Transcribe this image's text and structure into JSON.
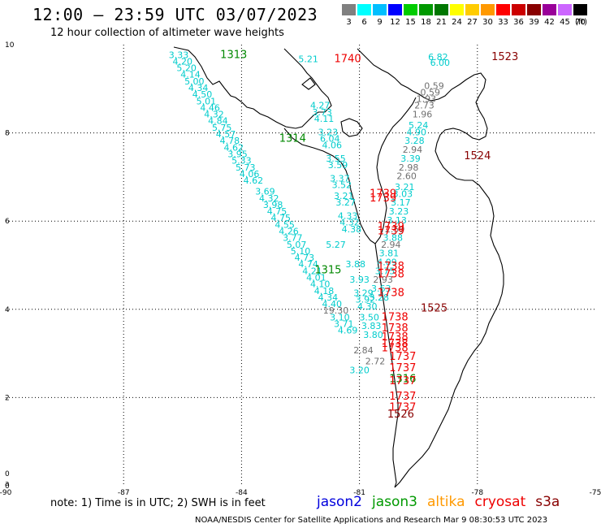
{
  "header": {
    "title": "12:00 – 23:59 UTC 03/07/2023",
    "subtitle": "12 hour collection of altimeter wave heights"
  },
  "scale": {
    "labels": [
      "3",
      "6",
      "9",
      "12",
      "15",
      "18",
      "21",
      "24",
      "27",
      "30",
      "33",
      "36",
      "39",
      "42",
      "45",
      "70"
    ],
    "colors": [
      "#808080",
      "#00ffff",
      "#00bfff",
      "#0000ff",
      "#00cc00",
      "#009900",
      "#007700",
      "#ffff00",
      "#ffcc00",
      "#ff9900",
      "#ff0000",
      "#cc0000",
      "#880000",
      "#990099",
      "#cc66ff",
      "#000000"
    ],
    "unit": "(ft)"
  },
  "map": {
    "xticks": [
      "-90",
      "-87",
      "-84",
      "-81",
      "-78",
      "-75"
    ],
    "yticks": [
      "10",
      "8",
      "6",
      "4",
      "2",
      "0"
    ],
    "extra_ylabels": [
      "0",
      "a"
    ],
    "palette": {
      "cyan": "#00cccc",
      "gray": "#707070",
      "green": "#008800",
      "red": "#ee0000",
      "darkred": "#880000"
    },
    "observations": [
      {
        "t": "3.33",
        "c": "cyan",
        "x": -85.6,
        "y": 9.7
      },
      {
        "t": "4.20",
        "c": "cyan",
        "x": -85.5,
        "y": 9.55
      },
      {
        "t": "5.20",
        "c": "cyan",
        "x": -85.4,
        "y": 9.4
      },
      {
        "t": "4.14",
        "c": "cyan",
        "x": -85.3,
        "y": 9.25
      },
      {
        "t": "5.00",
        "c": "cyan",
        "x": -85.2,
        "y": 9.1
      },
      {
        "t": "4.34",
        "c": "cyan",
        "x": -85.1,
        "y": 8.95
      },
      {
        "t": "4.50",
        "c": "cyan",
        "x": -85.0,
        "y": 8.8
      },
      {
        "t": "5.01",
        "c": "cyan",
        "x": -84.9,
        "y": 8.65
      },
      {
        "t": "4.46",
        "c": "cyan",
        "x": -84.8,
        "y": 8.5
      },
      {
        "t": "4.32",
        "c": "cyan",
        "x": -84.7,
        "y": 8.35
      },
      {
        "t": "4.84",
        "c": "cyan",
        "x": -84.6,
        "y": 8.2
      },
      {
        "t": "5.75",
        "c": "cyan",
        "x": -84.5,
        "y": 8.05
      },
      {
        "t": "4.57",
        "c": "cyan",
        "x": -84.4,
        "y": 7.9
      },
      {
        "t": "4.78",
        "c": "cyan",
        "x": -84.3,
        "y": 7.75
      },
      {
        "t": "4.62",
        "c": "cyan",
        "x": -84.2,
        "y": 7.6
      },
      {
        "t": "3.95",
        "c": "cyan",
        "x": -84.1,
        "y": 7.45
      },
      {
        "t": "5.33",
        "c": "cyan",
        "x": -84.0,
        "y": 7.3
      },
      {
        "t": "5.73",
        "c": "cyan",
        "x": -83.9,
        "y": 7.15
      },
      {
        "t": "4.06",
        "c": "cyan",
        "x": -83.8,
        "y": 7.0
      },
      {
        "t": "4.62",
        "c": "cyan",
        "x": -83.7,
        "y": 6.85
      },
      {
        "t": "3.69",
        "c": "cyan",
        "x": -83.4,
        "y": 6.6
      },
      {
        "t": "4.32",
        "c": "cyan",
        "x": -83.3,
        "y": 6.45
      },
      {
        "t": "3.98",
        "c": "cyan",
        "x": -83.2,
        "y": 6.3
      },
      {
        "t": "4.75",
        "c": "cyan",
        "x": -83.1,
        "y": 6.15
      },
      {
        "t": "4.75",
        "c": "cyan",
        "x": -83.0,
        "y": 6.0
      },
      {
        "t": "4.55",
        "c": "cyan",
        "x": -82.9,
        "y": 5.85
      },
      {
        "t": "4.26",
        "c": "cyan",
        "x": -82.8,
        "y": 5.7
      },
      {
        "t": "3.77",
        "c": "cyan",
        "x": -82.7,
        "y": 5.55
      },
      {
        "t": "5.07",
        "c": "cyan",
        "x": -82.6,
        "y": 5.4
      },
      {
        "t": "5.10",
        "c": "cyan",
        "x": -82.5,
        "y": 5.25
      },
      {
        "t": "4.73",
        "c": "cyan",
        "x": -82.4,
        "y": 5.1
      },
      {
        "t": "4.74",
        "c": "cyan",
        "x": -82.3,
        "y": 4.95
      },
      {
        "t": "4.21",
        "c": "cyan",
        "x": -82.2,
        "y": 4.8
      },
      {
        "t": "4.01",
        "c": "cyan",
        "x": -82.1,
        "y": 4.65
      },
      {
        "t": "4.10",
        "c": "cyan",
        "x": -82.0,
        "y": 4.5
      },
      {
        "t": "4.18",
        "c": "cyan",
        "x": -81.9,
        "y": 4.35
      },
      {
        "t": "4.34",
        "c": "cyan",
        "x": -81.8,
        "y": 4.2
      },
      {
        "t": "4.40",
        "c": "cyan",
        "x": -81.7,
        "y": 4.05
      },
      {
        "t": "19.30",
        "c": "gray",
        "x": -81.6,
        "y": 3.9
      },
      {
        "t": "3.10",
        "c": "cyan",
        "x": -81.5,
        "y": 3.75
      },
      {
        "t": "3.71",
        "c": "cyan",
        "x": -81.4,
        "y": 3.6
      },
      {
        "t": "4.69",
        "c": "cyan",
        "x": -81.3,
        "y": 3.45
      },
      {
        "t": "5.21",
        "c": "cyan",
        "x": -82.3,
        "y": 9.6
      },
      {
        "t": "4.27",
        "c": "cyan",
        "x": -82.0,
        "y": 8.55
      },
      {
        "t": "3.73",
        "c": "cyan",
        "x": -81.95,
        "y": 8.4
      },
      {
        "t": "4.11",
        "c": "cyan",
        "x": -81.9,
        "y": 8.25
      },
      {
        "t": "3.23",
        "c": "cyan",
        "x": -81.8,
        "y": 7.95
      },
      {
        "t": "6.04",
        "c": "cyan",
        "x": -81.75,
        "y": 7.8
      },
      {
        "t": "4.06",
        "c": "cyan",
        "x": -81.7,
        "y": 7.65
      },
      {
        "t": "3.55",
        "c": "cyan",
        "x": -81.6,
        "y": 7.35
      },
      {
        "t": "3.59",
        "c": "cyan",
        "x": -81.55,
        "y": 7.2
      },
      {
        "t": "3.37",
        "c": "cyan",
        "x": -81.5,
        "y": 6.9
      },
      {
        "t": "3.52",
        "c": "cyan",
        "x": -81.45,
        "y": 6.75
      },
      {
        "t": "3.21",
        "c": "cyan",
        "x": -81.4,
        "y": 6.5
      },
      {
        "t": "3.27",
        "c": "cyan",
        "x": -81.35,
        "y": 6.35
      },
      {
        "t": "4.33",
        "c": "cyan",
        "x": -81.3,
        "y": 6.05
      },
      {
        "t": "4.32",
        "c": "cyan",
        "x": -81.25,
        "y": 5.9
      },
      {
        "t": "4.38",
        "c": "cyan",
        "x": -81.2,
        "y": 5.75
      },
      {
        "t": "5.27",
        "c": "cyan",
        "x": -81.6,
        "y": 5.4
      },
      {
        "t": "3.88",
        "c": "cyan",
        "x": -81.1,
        "y": 4.95
      },
      {
        "t": "3.93",
        "c": "cyan",
        "x": -81.0,
        "y": 4.6
      },
      {
        "t": "3.29",
        "c": "cyan",
        "x": -80.9,
        "y": 4.3
      },
      {
        "t": "3.92",
        "c": "cyan",
        "x": -80.85,
        "y": 4.15
      },
      {
        "t": "4.30",
        "c": "cyan",
        "x": -80.8,
        "y": 4.0
      },
      {
        "t": "3.50",
        "c": "cyan",
        "x": -80.75,
        "y": 3.75
      },
      {
        "t": "3.83",
        "c": "cyan",
        "x": -80.7,
        "y": 3.55
      },
      {
        "t": "3.80",
        "c": "cyan",
        "x": -80.65,
        "y": 3.35
      },
      {
        "t": "6.82",
        "c": "cyan",
        "x": -79.0,
        "y": 9.65
      },
      {
        "t": "6.00",
        "c": "cyan",
        "x": -78.95,
        "y": 9.52
      },
      {
        "t": "0.59",
        "c": "gray",
        "x": -79.1,
        "y": 9.0
      },
      {
        "t": "0.59",
        "c": "gray",
        "x": -79.2,
        "y": 8.85
      },
      {
        "t": "1.93",
        "c": "gray",
        "x": -79.3,
        "y": 8.7
      },
      {
        "t": "2.73",
        "c": "gray",
        "x": -79.35,
        "y": 8.55
      },
      {
        "t": "1.96",
        "c": "gray",
        "x": -79.4,
        "y": 8.35
      },
      {
        "t": "5.24",
        "c": "cyan",
        "x": -79.5,
        "y": 8.1
      },
      {
        "t": "4.90",
        "c": "cyan",
        "x": -79.55,
        "y": 7.95
      },
      {
        "t": "3.28",
        "c": "cyan",
        "x": -79.6,
        "y": 7.75
      },
      {
        "t": "2.94",
        "c": "gray",
        "x": -79.65,
        "y": 7.55
      },
      {
        "t": "3.39",
        "c": "cyan",
        "x": -79.7,
        "y": 7.35
      },
      {
        "t": "2.98",
        "c": "gray",
        "x": -79.75,
        "y": 7.15
      },
      {
        "t": "2.60",
        "c": "gray",
        "x": -79.8,
        "y": 6.95
      },
      {
        "t": "3.21",
        "c": "cyan",
        "x": -79.85,
        "y": 6.7
      },
      {
        "t": "3.03",
        "c": "cyan",
        "x": -79.9,
        "y": 6.55
      },
      {
        "t": "3.17",
        "c": "cyan",
        "x": -79.95,
        "y": 6.35
      },
      {
        "t": "3.23",
        "c": "cyan",
        "x": -80.0,
        "y": 6.15
      },
      {
        "t": "3.13",
        "c": "cyan",
        "x": -80.05,
        "y": 5.95
      },
      {
        "t": "2.59",
        "c": "gray",
        "x": -80.1,
        "y": 5.75
      },
      {
        "t": "3.88",
        "c": "cyan",
        "x": -80.15,
        "y": 5.55
      },
      {
        "t": "2.94",
        "c": "gray",
        "x": -80.2,
        "y": 5.4
      },
      {
        "t": "3.81",
        "c": "cyan",
        "x": -80.25,
        "y": 5.2
      },
      {
        "t": "4.09",
        "c": "cyan",
        "x": -80.3,
        "y": 5.0
      },
      {
        "t": "3.75",
        "c": "cyan",
        "x": -80.35,
        "y": 4.8
      },
      {
        "t": "2.93",
        "c": "gray",
        "x": -80.4,
        "y": 4.6
      },
      {
        "t": "3.63",
        "c": "cyan",
        "x": -80.45,
        "y": 4.4
      },
      {
        "t": "3.28",
        "c": "cyan",
        "x": -80.5,
        "y": 4.2
      },
      {
        "t": "2.84",
        "c": "gray",
        "x": -80.9,
        "y": 3.0
      },
      {
        "t": "2.72",
        "c": "gray",
        "x": -80.6,
        "y": 2.75
      },
      {
        "t": "3.20",
        "c": "cyan",
        "x": -81.0,
        "y": 2.55
      }
    ],
    "passes": [
      {
        "t": "1313",
        "c": "green",
        "x": -84.2,
        "y": 9.7
      },
      {
        "t": "1740",
        "c": "red",
        "x": -81.3,
        "y": 9.6
      },
      {
        "t": "1523",
        "c": "darkred",
        "x": -77.3,
        "y": 9.65
      },
      {
        "t": "1314",
        "c": "green",
        "x": -82.7,
        "y": 7.8
      },
      {
        "t": "1524",
        "c": "darkred",
        "x": -78.0,
        "y": 7.4
      },
      {
        "t": "1739",
        "c": "red",
        "x": -80.4,
        "y": 6.55
      },
      {
        "t": "1739",
        "c": "red",
        "x": -80.4,
        "y": 6.45
      },
      {
        "t": "1739",
        "c": "red",
        "x": -80.2,
        "y": 5.8
      },
      {
        "t": "1739",
        "c": "red",
        "x": -80.2,
        "y": 5.7
      },
      {
        "t": "1315",
        "c": "green",
        "x": -81.8,
        "y": 4.82
      },
      {
        "t": "1738",
        "c": "red",
        "x": -80.2,
        "y": 4.9
      },
      {
        "t": "1738",
        "c": "red",
        "x": -80.2,
        "y": 4.72
      },
      {
        "t": "1738",
        "c": "red",
        "x": -80.2,
        "y": 4.3
      },
      {
        "t": "1525",
        "c": "darkred",
        "x": -79.1,
        "y": 3.95
      },
      {
        "t": "1738",
        "c": "red",
        "x": -80.1,
        "y": 3.75
      },
      {
        "t": "1738",
        "c": "red",
        "x": -80.1,
        "y": 3.5
      },
      {
        "t": "1738",
        "c": "red",
        "x": -80.1,
        "y": 3.3
      },
      {
        "t": "1738",
        "c": "red",
        "x": -80.1,
        "y": 3.15
      },
      {
        "t": "1738",
        "c": "red",
        "x": -80.1,
        "y": 3.05
      },
      {
        "t": "1737",
        "c": "red",
        "x": -79.9,
        "y": 2.85
      },
      {
        "t": "1737",
        "c": "red",
        "x": -79.9,
        "y": 2.6
      },
      {
        "t": "1316",
        "c": "green",
        "x": -79.9,
        "y": 2.35
      },
      {
        "t": "1737",
        "c": "red",
        "x": -79.9,
        "y": 2.3
      },
      {
        "t": "1737",
        "c": "red",
        "x": -79.9,
        "y": 1.95
      },
      {
        "t": "1737",
        "c": "red",
        "x": -79.9,
        "y": 1.7
      },
      {
        "t": "1526",
        "c": "darkred",
        "x": -79.95,
        "y": 1.55
      }
    ]
  },
  "note": "note: 1) Time is in UTC; 2) SWH is in feet",
  "satellites": [
    {
      "label": "jason2",
      "color": "#0000dd"
    },
    {
      "label": "jason3",
      "color": "#009900"
    },
    {
      "label": "altika",
      "color": "#ff9900"
    },
    {
      "label": "cryosat",
      "color": "#ee0000"
    },
    {
      "label": "s3a",
      "color": "#880000"
    }
  ],
  "footer": "NOAA/NESDIS Center for Satellite Applications and Research   Mar  9 08:30:53 UTC 2023"
}
